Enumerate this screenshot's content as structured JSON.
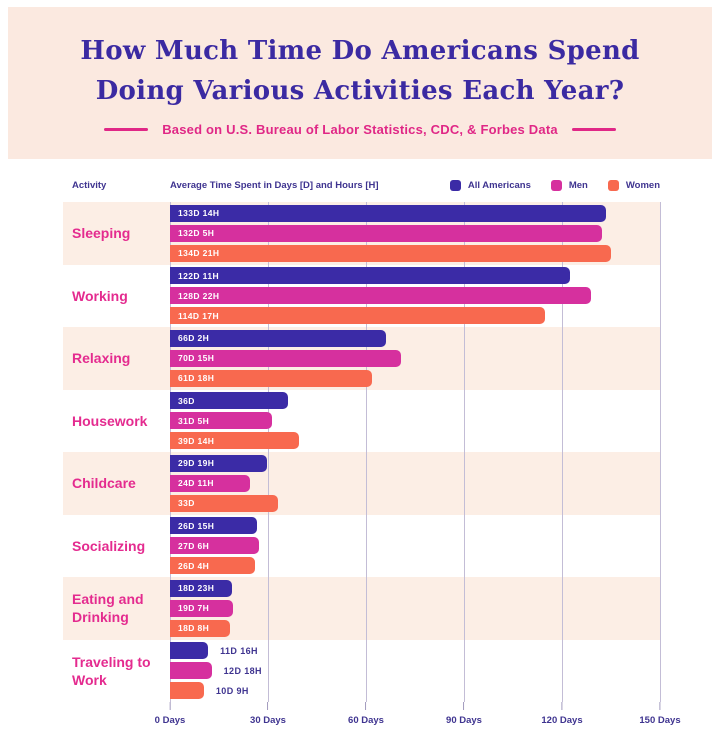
{
  "header": {
    "title_line1": "How Much Time Do Americans Spend",
    "title_line2": "Doing Various Activities Each Year?",
    "subtitle": "Based on U.S. Bureau of Labor Statistics, CDC, & Forbes Data"
  },
  "chart_header": {
    "activity_column_label": "Activity",
    "value_axis_label": "Average Time Spent in Days [D] and Hours [H]"
  },
  "colors": {
    "header_background": "#FBE9E0",
    "row_band": "#FCEEE5",
    "title_text": "#3B2AA2",
    "subtitle_accent": "#E02786",
    "activity_label_text": "#E42B8F",
    "axis_text": "#3F3490",
    "gridline": "#C3BDD6",
    "all_americans": "#3B2BA6",
    "men": "#D6309E",
    "women": "#F8694F"
  },
  "chart_data": {
    "type": "bar",
    "orientation": "horizontal",
    "title": "How Much Time Do Americans Spend Doing Various Activities Each Year?",
    "subtitle": "Based on U.S. Bureau of Labor Statistics, CDC, & Forbes Data",
    "xlabel": "Average Time Spent in Days [D] and Hours [H]",
    "ylabel": "Activity",
    "xlim": [
      0,
      150
    ],
    "x_ticks": [
      "0 Days",
      "30 Days",
      "60 Days",
      "90 Days",
      "120 Days",
      "150 Days"
    ],
    "grid": true,
    "legend_position": "top-right",
    "categories": [
      "Sleeping",
      "Working",
      "Relaxing",
      "Housework",
      "Childcare",
      "Socializing",
      "Eating and Drinking",
      "Traveling to Work"
    ],
    "label_placement": [
      "inside",
      "inside",
      "inside",
      "inside",
      "inside",
      "inside",
      "inside",
      "outside"
    ],
    "series": [
      {
        "name": "All Americans",
        "color": "#3B2BA6",
        "values": [
          133.58,
          122.46,
          66.08,
          36,
          29.79,
          26.63,
          18.96,
          11.67
        ],
        "bar_labels": [
          "133D 14H",
          "122D 11H",
          "66D 2H",
          "36D",
          "29D 19H",
          "26D 15H",
          "18D 23H",
          "11D 16H"
        ]
      },
      {
        "name": "Men",
        "color": "#D6309E",
        "values": [
          132.21,
          128.92,
          70.63,
          31.21,
          24.46,
          27.25,
          19.29,
          12.75
        ],
        "bar_labels": [
          "132D 5H",
          "128D 22H",
          "70D 15H",
          "31D 5H",
          "24D 11H",
          "27D 6H",
          "19D 7H",
          "12D 18H"
        ]
      },
      {
        "name": "Women",
        "color": "#F8694F",
        "values": [
          134.88,
          114.71,
          61.75,
          39.58,
          33,
          26.17,
          18.33,
          10.38
        ],
        "bar_labels": [
          "134D 21H",
          "114D 17H",
          "61D 18H",
          "39D 14H",
          "33D",
          "26D 4H",
          "18D 8H",
          "10D 9H"
        ]
      }
    ]
  }
}
